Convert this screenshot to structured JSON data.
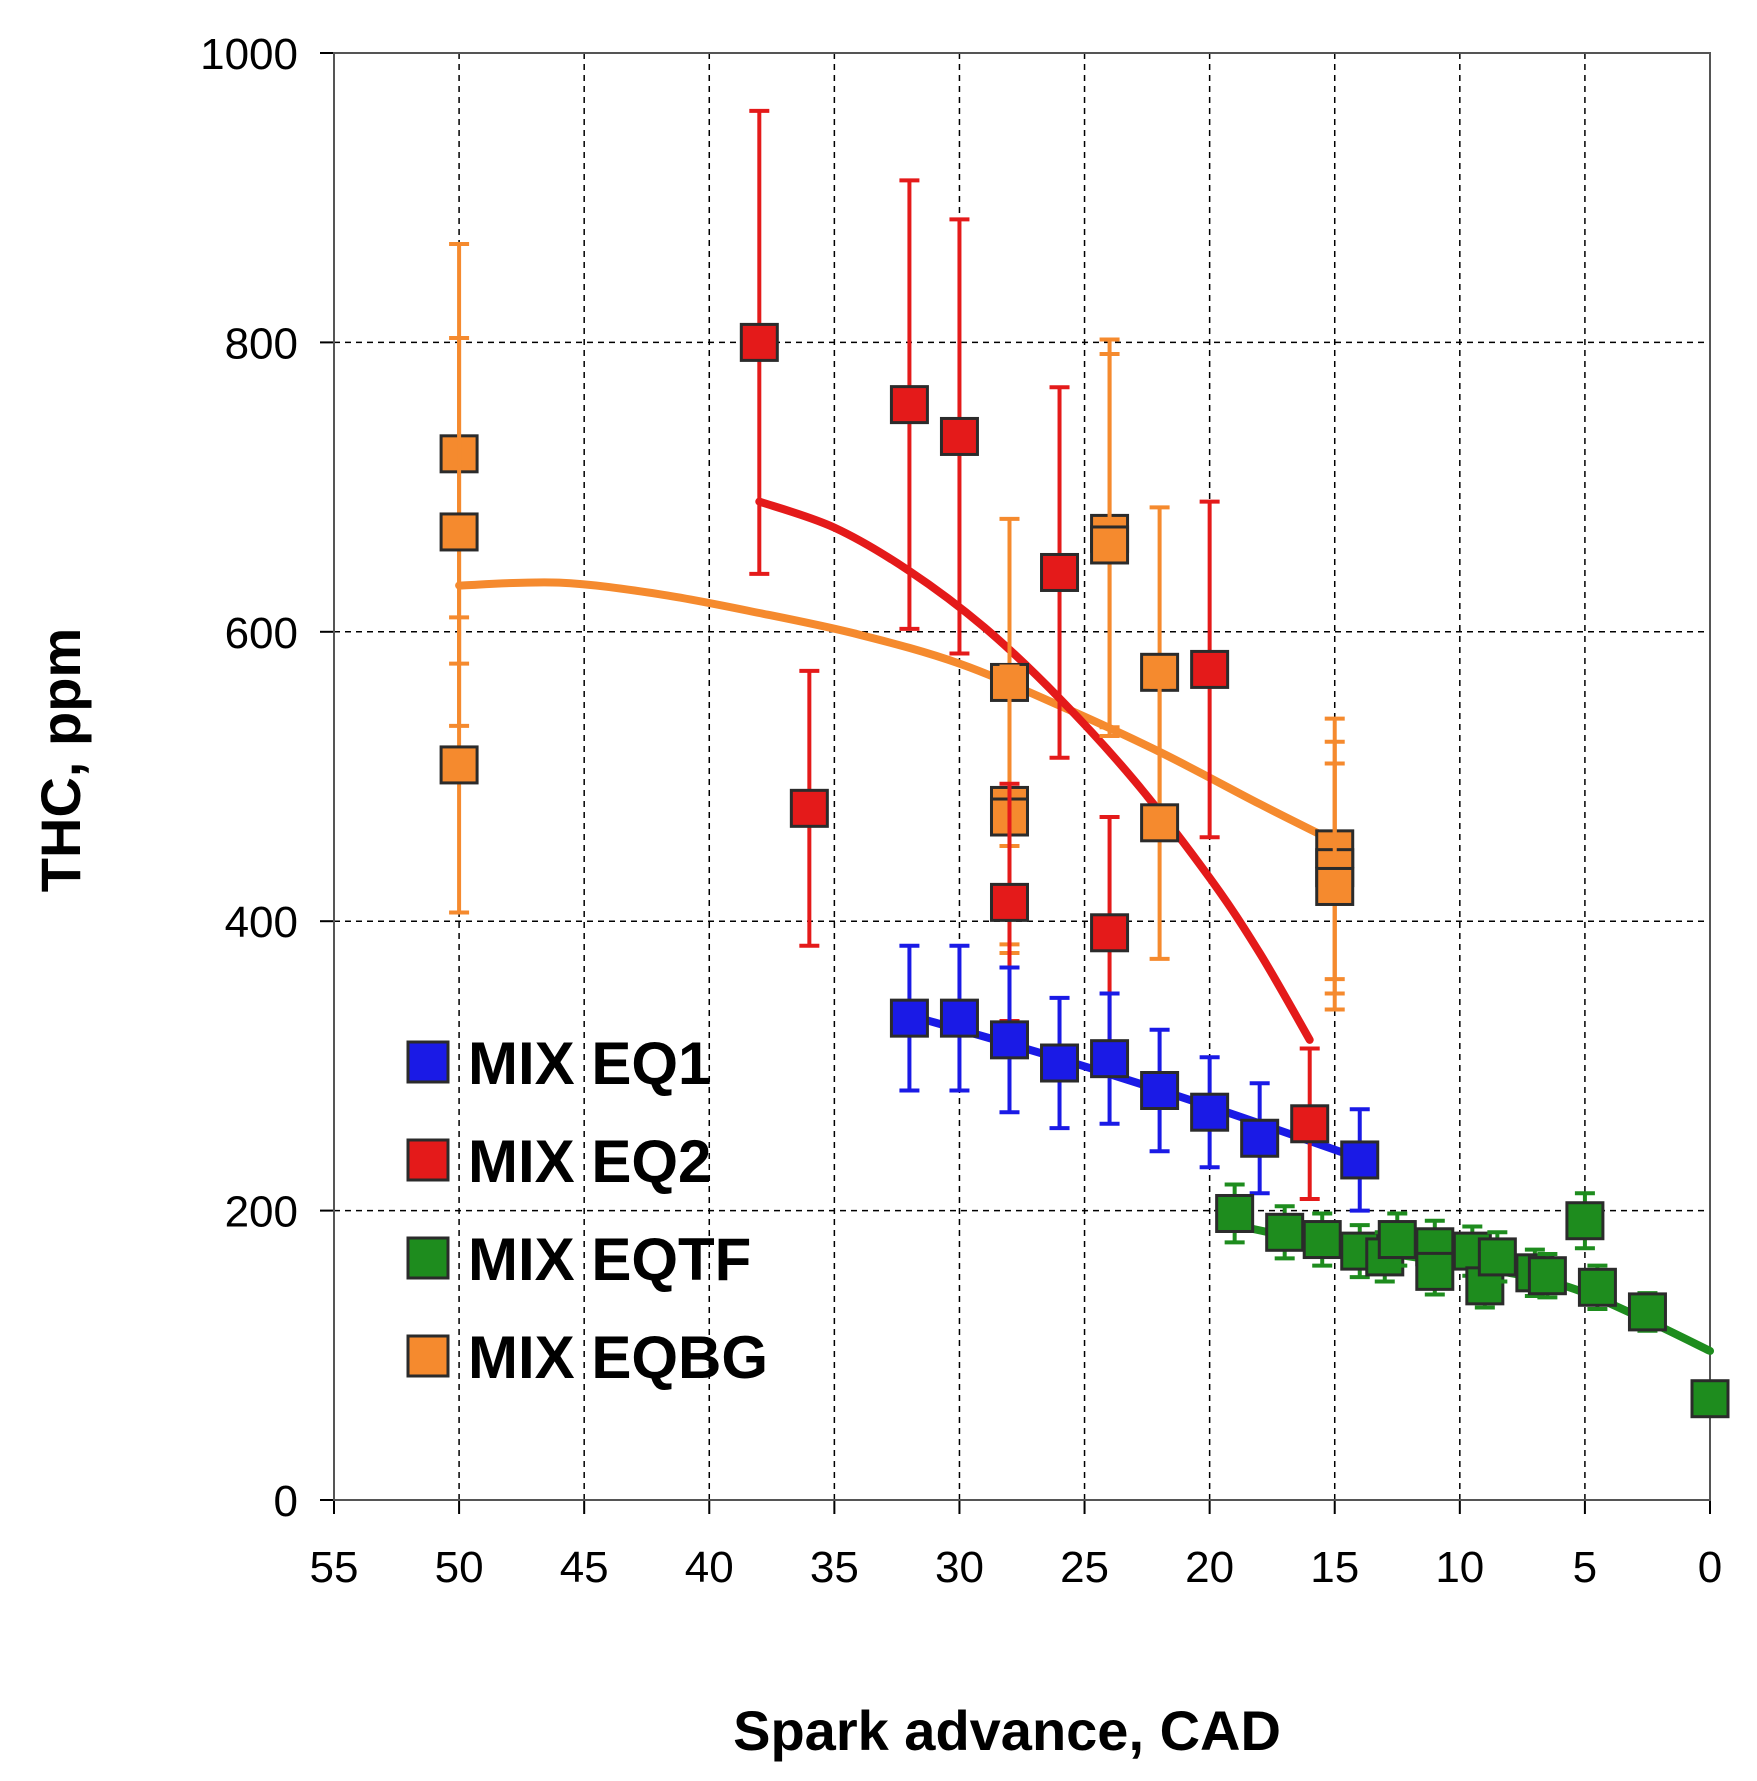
{
  "chart_data": {
    "type": "scatter",
    "xlabel": "Spark advance, CAD",
    "ylabel": "THC,  ppm",
    "xlim": [
      55,
      0
    ],
    "ylim": [
      0,
      1000
    ],
    "x_ticks": [
      "55",
      "50",
      "45",
      "40",
      "35",
      "30",
      "25",
      "20",
      "15",
      "10",
      "5",
      "0"
    ],
    "y_ticks": [
      "0",
      "200",
      "400",
      "600",
      "800",
      "1000"
    ],
    "grid": true,
    "legend_position": "bottom-left",
    "series": [
      {
        "name": "MIX EQ1",
        "color": "#1a1ae6",
        "points": [
          {
            "x": 32,
            "y": 333,
            "err": 50
          },
          {
            "x": 30,
            "y": 333,
            "err": 50
          },
          {
            "x": 28,
            "y": 318,
            "err": 50
          },
          {
            "x": 26,
            "y": 302,
            "err": 45
          },
          {
            "x": 24,
            "y": 305,
            "err": 45
          },
          {
            "x": 22,
            "y": 283,
            "err": 42
          },
          {
            "x": 20,
            "y": 268,
            "err": 38
          },
          {
            "x": 18,
            "y": 250,
            "err": 38
          },
          {
            "x": 14,
            "y": 235,
            "err": 35
          }
        ],
        "fit": [
          [
            32,
            335
          ],
          [
            26,
            305
          ],
          [
            20,
            272
          ],
          [
            14,
            236
          ]
        ]
      },
      {
        "name": "MIX EQ2",
        "color": "#e41a1a",
        "points": [
          {
            "x": 38,
            "y": 800,
            "err": 160
          },
          {
            "x": 36,
            "y": 478,
            "err": 95
          },
          {
            "x": 32,
            "y": 757,
            "err": 155
          },
          {
            "x": 30,
            "y": 735,
            "err": 150
          },
          {
            "x": 28,
            "y": 413,
            "err": 82
          },
          {
            "x": 26,
            "y": 641,
            "err": 128
          },
          {
            "x": 24,
            "y": 392,
            "err": 80
          },
          {
            "x": 20,
            "y": 574,
            "err": 116
          },
          {
            "x": 16,
            "y": 260,
            "err": 52
          }
        ],
        "fit": [
          [
            38,
            690
          ],
          [
            35,
            672
          ],
          [
            32,
            642
          ],
          [
            29,
            603
          ],
          [
            26,
            554
          ],
          [
            23,
            497
          ],
          [
            20,
            430
          ],
          [
            18,
            378
          ],
          [
            16,
            318
          ]
        ]
      },
      {
        "name": "MIX EQTF",
        "color": "#1e8c1e",
        "points": [
          {
            "x": 19,
            "y": 198,
            "err": 20
          },
          {
            "x": 17,
            "y": 185,
            "err": 18
          },
          {
            "x": 15.5,
            "y": 180,
            "err": 18
          },
          {
            "x": 14,
            "y": 172,
            "err": 18
          },
          {
            "x": 13,
            "y": 168,
            "err": 17
          },
          {
            "x": 12.5,
            "y": 180,
            "err": 18
          },
          {
            "x": 11,
            "y": 175,
            "err": 18
          },
          {
            "x": 11,
            "y": 158,
            "err": 16
          },
          {
            "x": 9.5,
            "y": 172,
            "err": 17
          },
          {
            "x": 9,
            "y": 148,
            "err": 15
          },
          {
            "x": 8.5,
            "y": 168,
            "err": 17
          },
          {
            "x": 7,
            "y": 157,
            "err": 16
          },
          {
            "x": 6.5,
            "y": 155,
            "err": 15
          },
          {
            "x": 5,
            "y": 193,
            "err": 19
          },
          {
            "x": 4.5,
            "y": 147,
            "err": 15
          },
          {
            "x": 2.5,
            "y": 130,
            "err": 13
          },
          {
            "x": 0,
            "y": 70,
            "err": 0
          }
        ],
        "fit": [
          [
            19,
            190
          ],
          [
            15,
            176
          ],
          [
            10,
            163
          ],
          [
            6,
            149
          ],
          [
            3,
            128
          ],
          [
            0,
            103
          ]
        ]
      },
      {
        "name": "MIX EQBG",
        "color": "#f58a2e",
        "points": [
          {
            "x": 50,
            "y": 723,
            "err": 145
          },
          {
            "x": 50,
            "y": 669,
            "err": 134
          },
          {
            "x": 50,
            "y": 508,
            "err": 102
          },
          {
            "x": 28,
            "y": 565,
            "err": 113
          },
          {
            "x": 28,
            "y": 480,
            "err": 96
          },
          {
            "x": 28,
            "y": 472,
            "err": 94
          },
          {
            "x": 24,
            "y": 668,
            "err": 134
          },
          {
            "x": 24,
            "y": 660,
            "err": 132
          },
          {
            "x": 22,
            "y": 572,
            "err": 114
          },
          {
            "x": 22,
            "y": 468,
            "err": 94
          },
          {
            "x": 15,
            "y": 450,
            "err": 90
          },
          {
            "x": 15,
            "y": 437,
            "err": 87
          },
          {
            "x": 15,
            "y": 424,
            "err": 85
          }
        ],
        "fit": [
          [
            50,
            632
          ],
          [
            46,
            634
          ],
          [
            42,
            626
          ],
          [
            38,
            613
          ],
          [
            34,
            598
          ],
          [
            30,
            578
          ],
          [
            26,
            549
          ],
          [
            22,
            517
          ],
          [
            18,
            481
          ],
          [
            15,
            455
          ]
        ]
      }
    ]
  }
}
